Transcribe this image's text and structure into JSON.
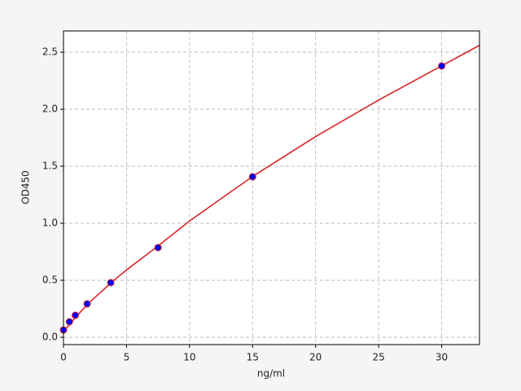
{
  "chart_data": {
    "type": "scatter",
    "xlabel": "ng/ml",
    "ylabel": "OD450",
    "xlim": [
      0,
      33
    ],
    "xticks": [
      0,
      5,
      10,
      15,
      20,
      25,
      30
    ],
    "ylim": [
      -0.064,
      2.686
    ],
    "yticks": [
      {
        "value": 0,
        "label": "0.0"
      },
      0.5,
      {
        "value": 1,
        "label": "1.0"
      },
      1.5,
      {
        "value": 2,
        "label": "2.0"
      },
      2.5
    ],
    "grid": true,
    "series": [
      {
        "type": "line",
        "color": "#d62728",
        "x": [
          0,
          1,
          2,
          4,
          5,
          7.5,
          10,
          15,
          20,
          25,
          30,
          33
        ],
        "values": [
          0.05,
          0.18,
          0.3,
          0.5,
          0.59,
          0.8,
          1.02,
          1.41,
          1.76,
          2.08,
          2.38,
          2.56
        ]
      },
      {
        "type": "scatter",
        "color": "#0000ff",
        "edgecolor": "#d62728",
        "x": [
          0,
          0.469,
          0.938,
          1.875,
          3.75,
          7.5,
          15,
          30
        ],
        "values": [
          0.064,
          0.136,
          0.193,
          0.293,
          0.479,
          0.786,
          1.407,
          2.379
        ]
      }
    ]
  }
}
